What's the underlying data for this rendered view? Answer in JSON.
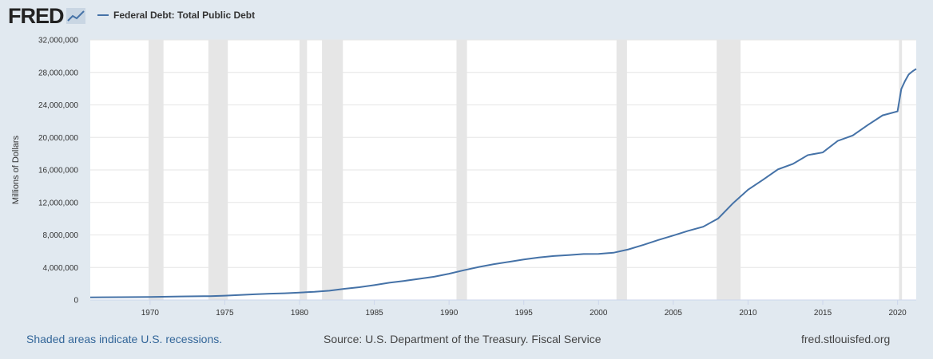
{
  "brand": {
    "logo_text": "FRED",
    "logo_icon": "fred-graph-icon"
  },
  "legend": {
    "label": "Federal Debt: Total Public Debt",
    "color": "#4572a7"
  },
  "footer": {
    "recession_note": "Shaded areas indicate U.S. recessions.",
    "source": "Source: U.S. Department of the Treasury. Fiscal Service",
    "site": "fred.stlouisfed.org"
  },
  "chart_data": {
    "type": "line",
    "title": "",
    "xlabel": "",
    "ylabel": "Millions of Dollars",
    "xlim": [
      1966,
      2021.25
    ],
    "ylim": [
      0,
      32000000
    ],
    "x_ticks": [
      1970,
      1975,
      1980,
      1985,
      1990,
      1995,
      2000,
      2005,
      2010,
      2015,
      2020
    ],
    "y_ticks": [
      0,
      4000000,
      8000000,
      12000000,
      16000000,
      20000000,
      24000000,
      28000000,
      32000000
    ],
    "y_tick_labels": [
      "0",
      "4,000,000",
      "8,000,000",
      "12,000,000",
      "16,000,000",
      "20,000,000",
      "24,000,000",
      "28,000,000",
      "32,000,000"
    ],
    "grid": true,
    "colors": {
      "line": "#4572a7",
      "recession": "#e6e6e6",
      "plot_bg": "#ffffff"
    },
    "recessions": [
      [
        1969.9,
        1970.9
      ],
      [
        1973.9,
        1975.2
      ],
      [
        1980.0,
        1980.5
      ],
      [
        1981.5,
        1982.9
      ],
      [
        1990.5,
        1991.2
      ],
      [
        2001.2,
        2001.9
      ],
      [
        2007.9,
        2009.5
      ],
      [
        2020.1,
        2020.3
      ]
    ],
    "series": [
      {
        "values": [
          [
            1966,
            320000
          ],
          [
            1968,
            347000
          ],
          [
            1970,
            370000
          ],
          [
            1972,
            427000
          ],
          [
            1974,
            475000
          ],
          [
            1975,
            533000
          ],
          [
            1976,
            620000
          ],
          [
            1977,
            699000
          ],
          [
            1978,
            772000
          ],
          [
            1979,
            827000
          ],
          [
            1980,
            908000
          ],
          [
            1981,
            998000
          ],
          [
            1982,
            1142000
          ],
          [
            1983,
            1377000
          ],
          [
            1984,
            1572000
          ],
          [
            1985,
            1823000
          ],
          [
            1986,
            2125000
          ],
          [
            1987,
            2350000
          ],
          [
            1988,
            2602000
          ],
          [
            1989,
            2857000
          ],
          [
            1990,
            3233000
          ],
          [
            1991,
            3665000
          ],
          [
            1992,
            4065000
          ],
          [
            1993,
            4411000
          ],
          [
            1994,
            4693000
          ],
          [
            1995,
            4974000
          ],
          [
            1996,
            5225000
          ],
          [
            1997,
            5413000
          ],
          [
            1998,
            5526000
          ],
          [
            1999,
            5656000
          ],
          [
            2000,
            5674000
          ],
          [
            2001,
            5807000
          ],
          [
            2002,
            6228000
          ],
          [
            2003,
            6783000
          ],
          [
            2004,
            7379000
          ],
          [
            2005,
            7933000
          ],
          [
            2006,
            8507000
          ],
          [
            2007,
            9008000
          ],
          [
            2008,
            10025000
          ],
          [
            2009,
            11910000
          ],
          [
            2010,
            13562000
          ],
          [
            2011,
            14790000
          ],
          [
            2012,
            16066000
          ],
          [
            2013,
            16738000
          ],
          [
            2014,
            17824000
          ],
          [
            2015,
            18151000
          ],
          [
            2016,
            19573000
          ],
          [
            2017,
            20245000
          ],
          [
            2018,
            21516000
          ],
          [
            2019,
            22719000
          ],
          [
            2020,
            23201000
          ],
          [
            2020.25,
            25950000
          ],
          [
            2020.5,
            26945000
          ],
          [
            2020.75,
            27748000
          ],
          [
            2021,
            28133000
          ],
          [
            2021.25,
            28430000
          ]
        ]
      }
    ]
  }
}
